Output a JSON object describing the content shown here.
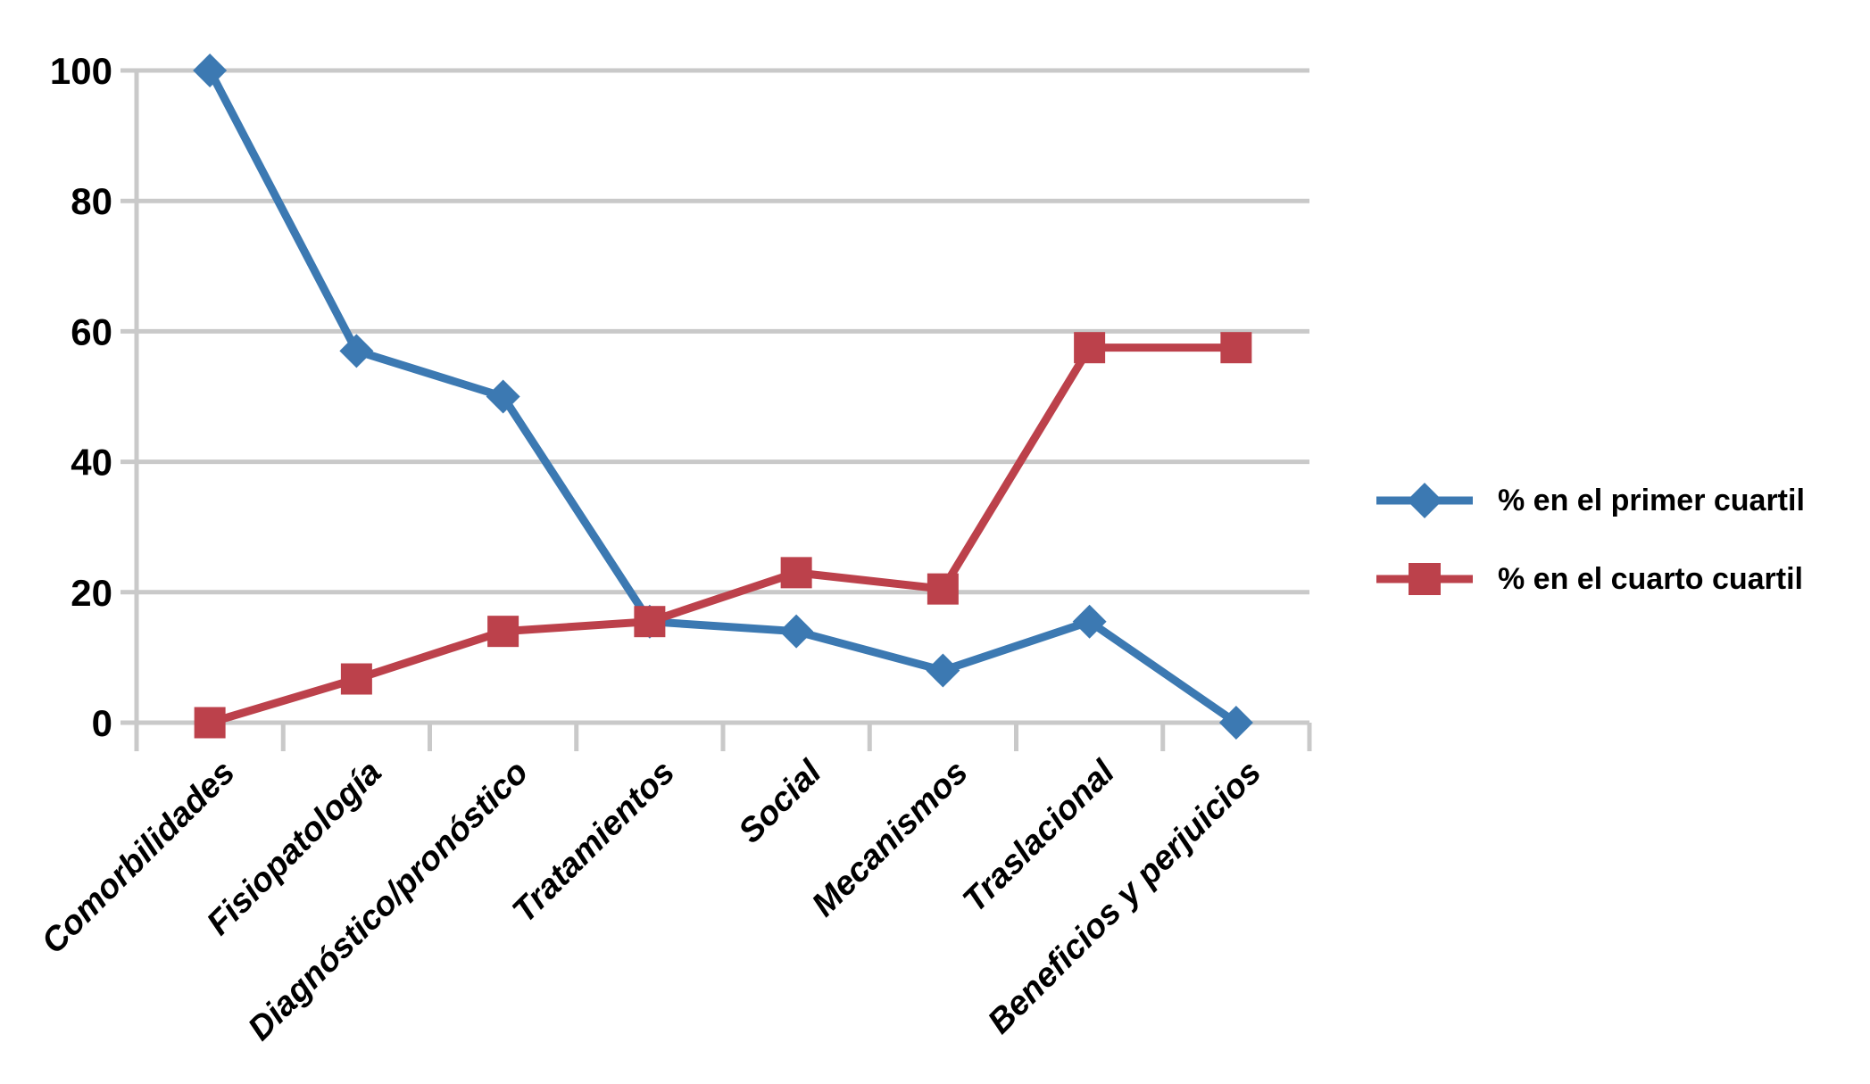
{
  "chart_data": {
    "type": "line",
    "title": "",
    "xlabel": "",
    "ylabel": "",
    "categories": [
      "Comorbilidades",
      "Fisiopatología",
      "Diagnóstico/pronóstico",
      "Tratamientos",
      "Social",
      "Mecanismos",
      "Traslacional",
      "Beneficios y perjuicios"
    ],
    "series": [
      {
        "name": "% en el primer cuartil",
        "marker": "diamond",
        "color": "#3C79B2",
        "values": [
          100,
          57,
          50,
          15.5,
          14,
          8,
          15.5,
          0
        ]
      },
      {
        "name": "% en el cuarto cuartil",
        "marker": "square",
        "color": "#BC414B",
        "values": [
          0,
          6.7,
          14,
          15.5,
          23,
          20.5,
          57.5,
          57.5
        ]
      }
    ],
    "ylim": [
      0,
      100
    ],
    "yticks": [
      0,
      20,
      40,
      60,
      80,
      100
    ],
    "grid": true,
    "gridline_color": "#C9C9C9",
    "axis_color": "#C9C9C9",
    "legend_position": "right"
  }
}
